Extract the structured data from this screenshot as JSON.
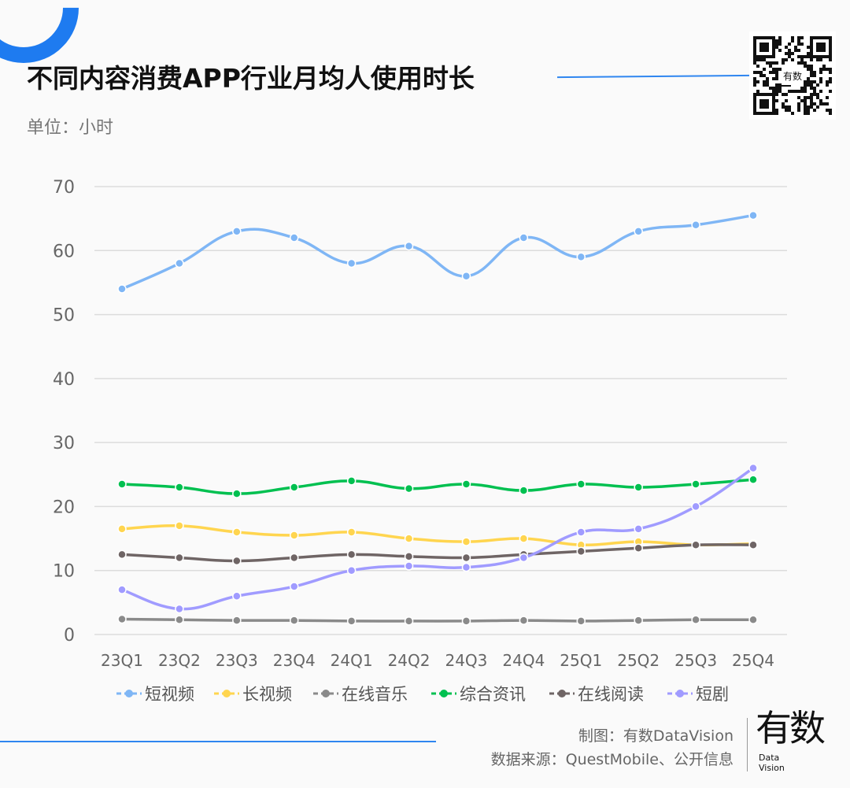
{
  "header": {
    "title": "不同内容消费APP行业月均人使用时长",
    "unit": "单位：小时"
  },
  "footer": {
    "credit": "制图：有数DataVision",
    "source": "数据来源：QuestMobile、公开信息",
    "logo_cn": "有数",
    "logo_en_1": "Data",
    "logo_en_2": "Vision"
  },
  "qr_logo": "有数",
  "colors": {
    "accent": "#1e7bf0"
  },
  "chart_data": {
    "type": "line",
    "title": "不同内容消费APP行业月均人使用时长",
    "ylabel": "单位：小时",
    "ylim": [
      0,
      70
    ],
    "yticks": [
      0,
      10,
      20,
      30,
      40,
      50,
      60,
      70
    ],
    "grid": true,
    "legend_placement": "bottom",
    "categories": [
      "23Q1",
      "23Q2",
      "23Q3",
      "23Q4",
      "24Q1",
      "24Q2",
      "24Q3",
      "24Q4",
      "25Q1",
      "25Q2",
      "25Q3",
      "25Q4"
    ],
    "series": [
      {
        "name": "短视频",
        "color": "#7fb6f5",
        "values": [
          54,
          58,
          63,
          62,
          58,
          60.7,
          56,
          62,
          59,
          63,
          64,
          65.5
        ]
      },
      {
        "name": "长视频",
        "color": "#ffd54f",
        "values": [
          16.5,
          17,
          16,
          15.5,
          16,
          15,
          14.5,
          15,
          14,
          14.5,
          14,
          14.2
        ]
      },
      {
        "name": "在线音乐",
        "color": "#8a8a8a",
        "values": [
          2.4,
          2.3,
          2.2,
          2.2,
          2.1,
          2.1,
          2.1,
          2.2,
          2.1,
          2.2,
          2.3,
          2.3
        ]
      },
      {
        "name": "综合资讯",
        "color": "#00c050",
        "values": [
          23.5,
          23,
          22,
          23,
          24,
          22.8,
          23.5,
          22.5,
          23.5,
          23,
          23.5,
          24.2
        ]
      },
      {
        "name": "在线阅读",
        "color": "#6f6565",
        "values": [
          12.5,
          12,
          11.5,
          12,
          12.5,
          12.2,
          12,
          12.5,
          13,
          13.5,
          14,
          14
        ]
      },
      {
        "name": "短剧",
        "color": "#a09bff",
        "values": [
          7,
          4,
          6,
          7.5,
          10,
          10.7,
          10.5,
          12,
          16,
          16.5,
          20,
          26
        ]
      }
    ]
  }
}
